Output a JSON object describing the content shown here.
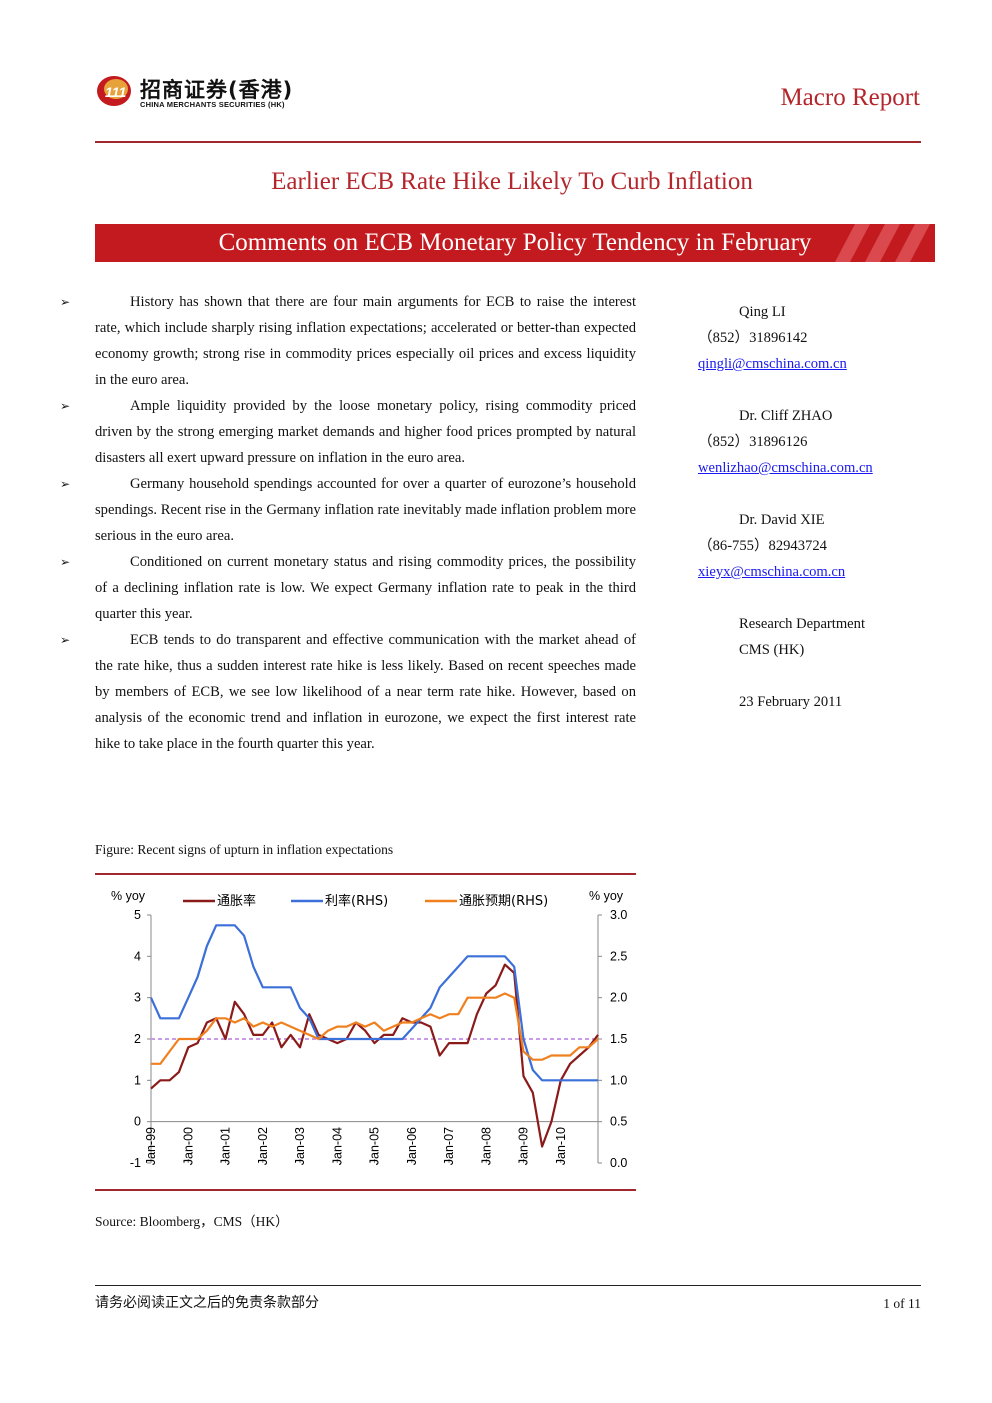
{
  "header": {
    "logo_cn": "招商证券(香港)",
    "logo_en": "CHINA MERCHANTS SECURITIES (HK)",
    "report_type": "Macro Report"
  },
  "title": "Earlier ECB Rate Hike Likely To Curb Inflation",
  "subtitle": "Comments on ECB Monetary Policy Tendency in February",
  "bullets": [
    "History has shown that there are four main arguments for ECB to raise the interest rate, which include sharply rising inflation expectations; accelerated or better-than expected economy growth; strong rise in commodity prices especially oil prices and excess liquidity in the euro area.",
    "Ample liquidity provided by the loose monetary policy, rising commodity priced driven by the strong emerging market demands and higher food prices prompted by natural disasters all exert upward pressure on inflation in the euro area.",
    "Germany household spendings accounted for over a quarter of eurozone’s household spendings. Recent rise in the Germany inflation rate inevitably made inflation problem more serious in the euro area.",
    "Conditioned on current monetary status and rising commodity prices, the possibility of a declining inflation rate is low. We expect Germany inflation rate to peak in the third quarter this year.",
    "ECB tends to do transparent and effective communication with the market ahead of the rate hike, thus a sudden interest rate hike is less likely. Based on recent speeches made by members of ECB, we see low likelihood of a near term rate hike. However, based on analysis of the economic trend and inflation in eurozone, we expect the first interest rate hike to take place in the fourth quarter this year."
  ],
  "authors": [
    {
      "name": "Qing LI",
      "phone": "（852）31896142",
      "email": "qingli@cmschina.com.cn"
    },
    {
      "name": "Dr. Cliff ZHAO",
      "phone": "（852）31896126",
      "email": "wenlizhao@cmschina.com.cn"
    },
    {
      "name": "Dr. David XIE",
      "phone": "（86-755）82943724",
      "email": "xieyx@cmschina.com.cn"
    }
  ],
  "department": [
    "Research Department",
    "CMS (HK)"
  ],
  "date": "23 February 2011",
  "figure": {
    "caption": "Figure:  Recent signs of upturn in inflation expectations",
    "source": "Source:  Bloomberg，CMS（HK）"
  },
  "chart_data": {
    "type": "line",
    "ylabel": "% yoy",
    "y2label": "% yoy",
    "x": [
      1999,
      1999.25,
      1999.5,
      1999.75,
      2000,
      2000.25,
      2000.5,
      2000.75,
      2001,
      2001.25,
      2001.5,
      2001.75,
      2002,
      2002.25,
      2002.5,
      2002.75,
      2003,
      2003.25,
      2003.5,
      2003.75,
      2004,
      2004.25,
      2004.5,
      2004.75,
      2005,
      2005.25,
      2005.5,
      2005.75,
      2006,
      2006.25,
      2006.5,
      2006.75,
      2007,
      2007.25,
      2007.5,
      2007.75,
      2008,
      2008.25,
      2008.5,
      2008.75,
      2009,
      2009.25,
      2009.5,
      2009.75,
      2010,
      2010.25,
      2010.5,
      2010.75,
      2011
    ],
    "xlim": [
      1999,
      2011
    ],
    "xticks": [
      {
        "value": 1999,
        "label": "Jan-99"
      },
      {
        "value": 2000,
        "label": "Jan-00"
      },
      {
        "value": 2001,
        "label": "Jan-01"
      },
      {
        "value": 2002,
        "label": "Jan-02"
      },
      {
        "value": 2003,
        "label": "Jan-03"
      },
      {
        "value": 2004,
        "label": "Jan-04"
      },
      {
        "value": 2005,
        "label": "Jan-05"
      },
      {
        "value": 2006,
        "label": "Jan-06"
      },
      {
        "value": 2007,
        "label": "Jan-07"
      },
      {
        "value": 2008,
        "label": "Jan-08"
      },
      {
        "value": 2009,
        "label": "Jan-09"
      },
      {
        "value": 2010,
        "label": "Jan-10"
      }
    ],
    "ylim": [
      -1,
      5
    ],
    "yticks": [
      -1,
      0,
      1,
      2,
      3,
      4,
      5
    ],
    "y2lim": [
      0,
      3
    ],
    "y2ticks": [
      {
        "value": 0,
        "label": "0.0"
      },
      {
        "value": 0.5,
        "label": "0.5"
      },
      {
        "value": 1,
        "label": "1.0"
      },
      {
        "value": 1.5,
        "label": "1.5"
      },
      {
        "value": 2,
        "label": "2.0"
      },
      {
        "value": 2.5,
        "label": "2.5"
      },
      {
        "value": 3,
        "label": "3.0"
      }
    ],
    "reference_line": {
      "value": 2,
      "color": "#c99be6"
    },
    "series": [
      {
        "name": "通胀率",
        "color": "#8b1a1a",
        "values": [
          0.8,
          1.0,
          1.0,
          1.2,
          1.8,
          1.9,
          2.4,
          2.5,
          2.0,
          2.9,
          2.6,
          2.1,
          2.1,
          2.4,
          1.8,
          2.1,
          1.8,
          2.6,
          2.1,
          2.0,
          1.9,
          2.0,
          2.4,
          2.2,
          1.9,
          2.1,
          2.1,
          2.5,
          2.4,
          2.4,
          2.3,
          1.6,
          1.9,
          1.9,
          1.9,
          2.6,
          3.1,
          3.3,
          3.8,
          3.6,
          1.1,
          0.7,
          -0.6,
          0.0,
          1.0,
          1.4,
          1.6,
          1.8,
          2.1
        ]
      },
      {
        "name": "利率(RHS)",
        "color": "#3b6fd9",
        "axis": "y2",
        "values": [
          2.0,
          1.75,
          1.75,
          1.75,
          2.0,
          2.25,
          2.625,
          2.875,
          2.875,
          2.875,
          2.75,
          2.375,
          2.125,
          2.125,
          2.125,
          2.125,
          1.875,
          1.75,
          1.5,
          1.5,
          1.5,
          1.5,
          1.5,
          1.5,
          1.5,
          1.5,
          1.5,
          1.5,
          1.625,
          1.75,
          1.875,
          2.125,
          2.25,
          2.375,
          2.5,
          2.5,
          2.5,
          2.5,
          2.5,
          2.375,
          1.5,
          1.125,
          1.0,
          1.0,
          1.0,
          1.0,
          1.0,
          1.0,
          1.0
        ]
      },
      {
        "name": "通胀预期(RHS)",
        "color": "#f0801f",
        "axis": "y2",
        "values": [
          1.2,
          1.2,
          1.35,
          1.5,
          1.5,
          1.5,
          1.6,
          1.75,
          1.75,
          1.7,
          1.75,
          1.65,
          1.7,
          1.65,
          1.7,
          1.65,
          1.6,
          1.55,
          1.5,
          1.6,
          1.65,
          1.65,
          1.7,
          1.65,
          1.7,
          1.6,
          1.65,
          1.7,
          1.7,
          1.75,
          1.8,
          1.75,
          1.8,
          1.8,
          2.0,
          2.0,
          2.0,
          2.0,
          2.05,
          2.0,
          1.35,
          1.25,
          1.25,
          1.3,
          1.3,
          1.3,
          1.4,
          1.4,
          1.5
        ]
      }
    ]
  },
  "footer": {
    "disclaimer": "请务必阅读正文之后的免责条款部分",
    "page": "1 of 11"
  }
}
